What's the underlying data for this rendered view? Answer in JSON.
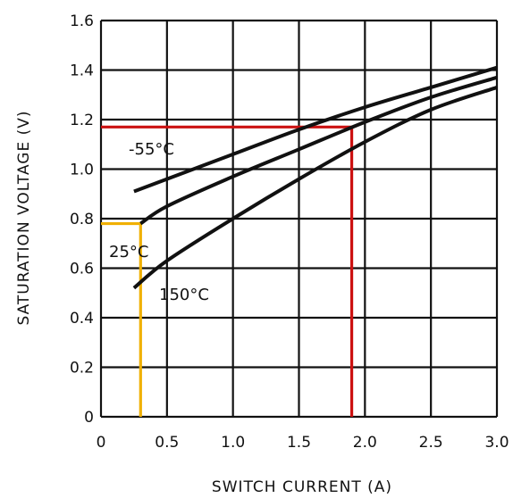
{
  "chart_data": {
    "type": "line",
    "title": "",
    "xlabel": "SWITCH CURRENT (A)",
    "ylabel": "SATURATION VOLTAGE (V)",
    "xlim": [
      0,
      3.0
    ],
    "ylim": [
      0,
      1.6
    ],
    "x_ticks": [
      "0",
      "0.5",
      "1.0",
      "1.5",
      "2.0",
      "2.5",
      "3.0"
    ],
    "y_ticks": [
      "0",
      "0.2",
      "0.4",
      "0.6",
      "0.8",
      "1.0",
      "1.2",
      "1.4",
      "1.6"
    ],
    "grid": true,
    "series": [
      {
        "name": "-55°C",
        "x": [
          0.25,
          0.5,
          1.0,
          1.5,
          2.0,
          2.5,
          3.0
        ],
        "y": [
          0.91,
          0.96,
          1.06,
          1.16,
          1.25,
          1.33,
          1.41
        ]
      },
      {
        "name": "25°C",
        "x": [
          0.3,
          0.5,
          1.0,
          1.5,
          2.0,
          2.5,
          3.0
        ],
        "y": [
          0.78,
          0.85,
          0.97,
          1.08,
          1.19,
          1.29,
          1.37
        ]
      },
      {
        "name": "150°C",
        "x": [
          0.25,
          0.5,
          1.0,
          1.5,
          2.0,
          2.5,
          3.0
        ],
        "y": [
          0.52,
          0.63,
          0.8,
          0.96,
          1.11,
          1.24,
          1.33
        ]
      }
    ],
    "reference_lines": [
      {
        "color": "#cc1111",
        "x": 1.9,
        "y": 1.17
      },
      {
        "color": "#f0b000",
        "x": 0.3,
        "y": 0.78
      }
    ]
  }
}
